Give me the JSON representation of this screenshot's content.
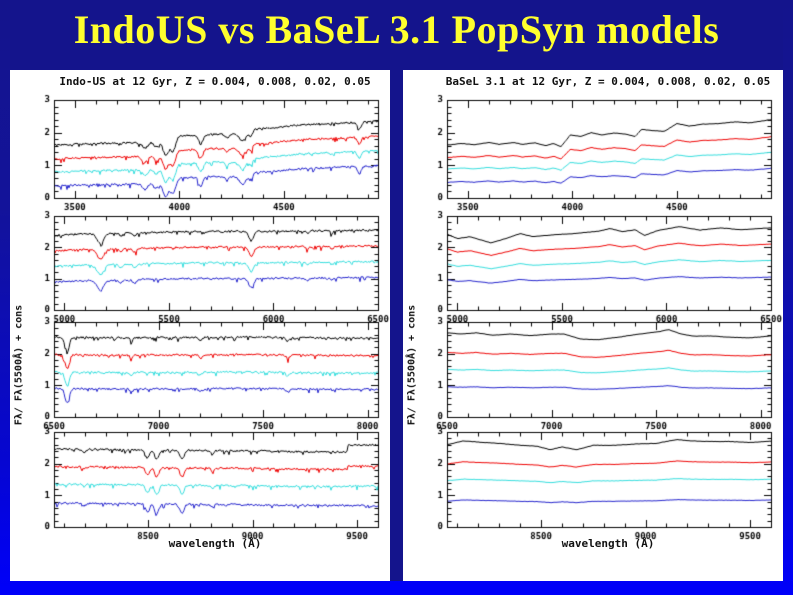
{
  "slide": {
    "title": "IndoUS vs BaSeL 3.1 PopSyn models",
    "title_color": "#ffff2e",
    "background_color": "#14148c",
    "frame_color": "#0000fa",
    "panel_background": "#ffffff"
  },
  "chart_data": [
    {
      "type": "line",
      "title": "Indo-US at 12 Gyr, Z = 0.004, 0.008, 0.02, 0.05",
      "style": "noisy",
      "xlabel": "wavelength (Å)",
      "ylabel": "Fλ/ Fλ(5500Å) + cons",
      "legend": "none",
      "grid": false,
      "series": [
        {
          "name": "spectrum-black",
          "color": "#000000"
        },
        {
          "name": "spectrum-red",
          "color": "#ee0000"
        },
        {
          "name": "spectrum-cyan",
          "color": "#33dddd"
        },
        {
          "name": "spectrum-blue",
          "color": "#2222cc"
        }
      ],
      "subplots": [
        {
          "xlim": [
            3400,
            4950
          ],
          "ylim": [
            0,
            3
          ],
          "xticks": [
            3500,
            4000,
            4500
          ],
          "yticks": [
            0,
            1,
            2,
            3
          ],
          "continuum": [
            [
              3400,
              1.62
            ],
            [
              3550,
              1.66
            ],
            [
              3700,
              1.68
            ],
            [
              3850,
              1.7
            ],
            [
              3950,
              1.74
            ],
            [
              4000,
              1.9
            ],
            [
              4150,
              1.95
            ],
            [
              4280,
              1.95
            ],
            [
              4320,
              2.08
            ],
            [
              4450,
              2.15
            ],
            [
              4600,
              2.25
            ],
            [
              4800,
              2.3
            ],
            [
              4950,
              2.35
            ]
          ],
          "offsets": [
            0,
            -0.44,
            -0.86,
            -1.3
          ],
          "scales": [
            1,
            0.95,
            0.9,
            0.85
          ],
          "dips": [
            [
              3835,
              12,
              0.18
            ],
            [
              3889,
              10,
              0.15
            ],
            [
              3934,
              12,
              0.42
            ],
            [
              3969,
              12,
              0.38
            ],
            [
              4102,
              10,
              0.28
            ],
            [
              4227,
              8,
              0.12
            ],
            [
              4305,
              16,
              0.28
            ],
            [
              4341,
              9,
              0.18
            ],
            [
              4861,
              9,
              0.22
            ]
          ]
        },
        {
          "xlim": [
            4950,
            6500
          ],
          "ylim": [
            0,
            3
          ],
          "xticks": [
            5000,
            5500,
            6000,
            6500
          ],
          "yticks": [
            0,
            1,
            2,
            3
          ],
          "continuum": [
            [
              4950,
              2.38
            ],
            [
              5100,
              2.43
            ],
            [
              5350,
              2.47
            ],
            [
              5600,
              2.5
            ],
            [
              5900,
              2.51
            ],
            [
              6200,
              2.53
            ],
            [
              6500,
              2.55
            ]
          ],
          "offsets": [
            0,
            -0.5,
            -1.0,
            -1.5
          ],
          "scales": [
            1,
            0.95,
            0.9,
            0.85
          ],
          "dips": [
            [
              5172,
              16,
              0.32
            ],
            [
              5270,
              8,
              0.1
            ],
            [
              5335,
              8,
              0.12
            ],
            [
              5893,
              12,
              0.28
            ],
            [
              6163,
              8,
              0.08
            ],
            [
              6280,
              7,
              0.08
            ]
          ]
        },
        {
          "xlim": [
            6500,
            8050
          ],
          "ylim": [
            0,
            3
          ],
          "xticks": [
            6500,
            7000,
            7500,
            8000
          ],
          "yticks": [
            0,
            1,
            2,
            3
          ],
          "continuum": [
            [
              6500,
              2.52
            ],
            [
              6800,
              2.5
            ],
            [
              7100,
              2.51
            ],
            [
              7400,
              2.52
            ],
            [
              7700,
              2.5
            ],
            [
              8050,
              2.49
            ]
          ],
          "offsets": [
            0,
            -0.55,
            -1.1,
            -1.62
          ],
          "scales": [
            1,
            0.95,
            0.9,
            0.85
          ],
          "dips": [
            [
              6563,
              10,
              0.45
            ],
            [
              6870,
              7,
              0.1
            ],
            [
              7200,
              8,
              0.08
            ],
            [
              7620,
              9,
              0.1
            ]
          ]
        },
        {
          "xlim": [
            8050,
            9600
          ],
          "ylim": [
            0,
            3
          ],
          "xticks": [
            8500,
            9000,
            9500
          ],
          "yticks": [
            0,
            1,
            2,
            3
          ],
          "continuum": [
            [
              8050,
              2.46
            ],
            [
              8400,
              2.44
            ],
            [
              8700,
              2.42
            ],
            [
              9000,
              2.4
            ],
            [
              9600,
              2.36
            ]
          ],
          "offsets": [
            0,
            -0.55,
            -1.1,
            -1.7
          ],
          "scales": [
            1,
            0.95,
            0.9,
            0.85
          ],
          "dips": [
            [
              8195,
              7,
              0.08
            ],
            [
              8498,
              9,
              0.26
            ],
            [
              8542,
              10,
              0.3
            ],
            [
              8662,
              10,
              0.28
            ],
            [
              8807,
              7,
              0.1
            ]
          ],
          "step": {
            "x": 9455,
            "rise": [
              0.22,
              0.1,
              0.02,
              0
            ]
          }
        }
      ]
    },
    {
      "type": "line",
      "title": "BaSeL 3.1 at 12 Gyr, Z = 0.004, 0.008, 0.02, 0.05",
      "style": "smooth",
      "xlabel": "wavelength (Å)",
      "ylabel": "Fλ/ Fλ(5500Å) + cons",
      "legend": "none",
      "grid": false,
      "series": [
        {
          "name": "spectrum-black",
          "color": "#000000"
        },
        {
          "name": "spectrum-red",
          "color": "#ee0000"
        },
        {
          "name": "spectrum-cyan",
          "color": "#33dddd"
        },
        {
          "name": "spectrum-blue",
          "color": "#2222cc"
        }
      ],
      "subplots": [
        {
          "xlim": [
            3400,
            4950
          ],
          "ylim": [
            0,
            3
          ],
          "xticks": [
            3500,
            4000,
            4500
          ],
          "yticks": [
            0,
            1,
            2,
            3
          ],
          "continuum": [
            [
              3400,
              1.62
            ],
            [
              3470,
              1.67
            ],
            [
              3530,
              1.63
            ],
            [
              3600,
              1.7
            ],
            [
              3650,
              1.64
            ],
            [
              3720,
              1.7
            ],
            [
              3760,
              1.64
            ],
            [
              3820,
              1.69
            ],
            [
              3870,
              1.6
            ],
            [
              3910,
              1.67
            ],
            [
              3945,
              1.57
            ],
            [
              3990,
              1.93
            ],
            [
              4040,
              1.88
            ],
            [
              4090,
              2.0
            ],
            [
              4140,
              1.93
            ],
            [
              4200,
              1.99
            ],
            [
              4260,
              1.95
            ],
            [
              4300,
              1.88
            ],
            [
              4330,
              2.1
            ],
            [
              4390,
              2.06
            ],
            [
              4440,
              2.04
            ],
            [
              4500,
              2.28
            ],
            [
              4560,
              2.2
            ],
            [
              4620,
              2.26
            ],
            [
              4700,
              2.28
            ],
            [
              4780,
              2.33
            ],
            [
              4850,
              2.3
            ],
            [
              4950,
              2.4
            ]
          ],
          "offsets": [
            0,
            -0.44,
            -0.84,
            -1.28
          ],
          "scales": [
            1,
            0.82,
            0.66,
            0.55
          ],
          "dips": []
        },
        {
          "xlim": [
            4950,
            6500
          ],
          "ylim": [
            0,
            3
          ],
          "xticks": [
            5000,
            5500,
            6000,
            6500
          ],
          "yticks": [
            0,
            1,
            2,
            3
          ],
          "continuum": [
            [
              4950,
              2.42
            ],
            [
              5000,
              2.28
            ],
            [
              5060,
              2.34
            ],
            [
              5160,
              2.14
            ],
            [
              5240,
              2.3
            ],
            [
              5300,
              2.44
            ],
            [
              5360,
              2.34
            ],
            [
              5460,
              2.4
            ],
            [
              5560,
              2.44
            ],
            [
              5680,
              2.52
            ],
            [
              5730,
              2.6
            ],
            [
              5790,
              2.5
            ],
            [
              5850,
              2.56
            ],
            [
              5895,
              2.38
            ],
            [
              5960,
              2.54
            ],
            [
              6060,
              2.66
            ],
            [
              6160,
              2.55
            ],
            [
              6260,
              2.62
            ],
            [
              6360,
              2.56
            ],
            [
              6440,
              2.6
            ],
            [
              6500,
              2.62
            ]
          ],
          "offsets": [
            0,
            -0.48,
            -0.97,
            -1.48
          ],
          "scales": [
            1,
            0.75,
            0.55,
            0.4
          ],
          "dips": []
        },
        {
          "xlim": [
            6500,
            8050
          ],
          "ylim": [
            0,
            3
          ],
          "xticks": [
            6500,
            7000,
            7500,
            8000
          ],
          "yticks": [
            0,
            1,
            2,
            3
          ],
          "continuum": [
            [
              6500,
              2.66
            ],
            [
              6570,
              2.62
            ],
            [
              6640,
              2.66
            ],
            [
              6720,
              2.58
            ],
            [
              6800,
              2.62
            ],
            [
              6900,
              2.57
            ],
            [
              7000,
              2.62
            ],
            [
              7060,
              2.62
            ],
            [
              7140,
              2.46
            ],
            [
              7220,
              2.44
            ],
            [
              7320,
              2.52
            ],
            [
              7420,
              2.62
            ],
            [
              7520,
              2.7
            ],
            [
              7560,
              2.76
            ],
            [
              7620,
              2.62
            ],
            [
              7680,
              2.55
            ],
            [
              7760,
              2.56
            ],
            [
              7850,
              2.52
            ],
            [
              7950,
              2.5
            ],
            [
              8050,
              2.56
            ]
          ],
          "offsets": [
            0,
            -0.6,
            -1.12,
            -1.66
          ],
          "scales": [
            1,
            0.7,
            0.5,
            0.35
          ],
          "dips": []
        },
        {
          "xlim": [
            8050,
            9600
          ],
          "ylim": [
            0,
            3
          ],
          "xticks": [
            8500,
            9000,
            9500
          ],
          "yticks": [
            0,
            1,
            2,
            3
          ],
          "continuum": [
            [
              8050,
              2.6
            ],
            [
              8130,
              2.72
            ],
            [
              8200,
              2.68
            ],
            [
              8300,
              2.64
            ],
            [
              8400,
              2.58
            ],
            [
              8480,
              2.55
            ],
            [
              8545,
              2.44
            ],
            [
              8600,
              2.53
            ],
            [
              8670,
              2.44
            ],
            [
              8750,
              2.58
            ],
            [
              8850,
              2.58
            ],
            [
              8950,
              2.62
            ],
            [
              9050,
              2.64
            ],
            [
              9150,
              2.76
            ],
            [
              9220,
              2.72
            ],
            [
              9300,
              2.7
            ],
            [
              9400,
              2.7
            ],
            [
              9500,
              2.67
            ],
            [
              9600,
              2.71
            ]
          ],
          "offsets": [
            0,
            -0.62,
            -1.15,
            -1.8
          ],
          "scales": [
            1,
            0.6,
            0.4,
            0.3
          ],
          "dips": []
        }
      ]
    }
  ]
}
